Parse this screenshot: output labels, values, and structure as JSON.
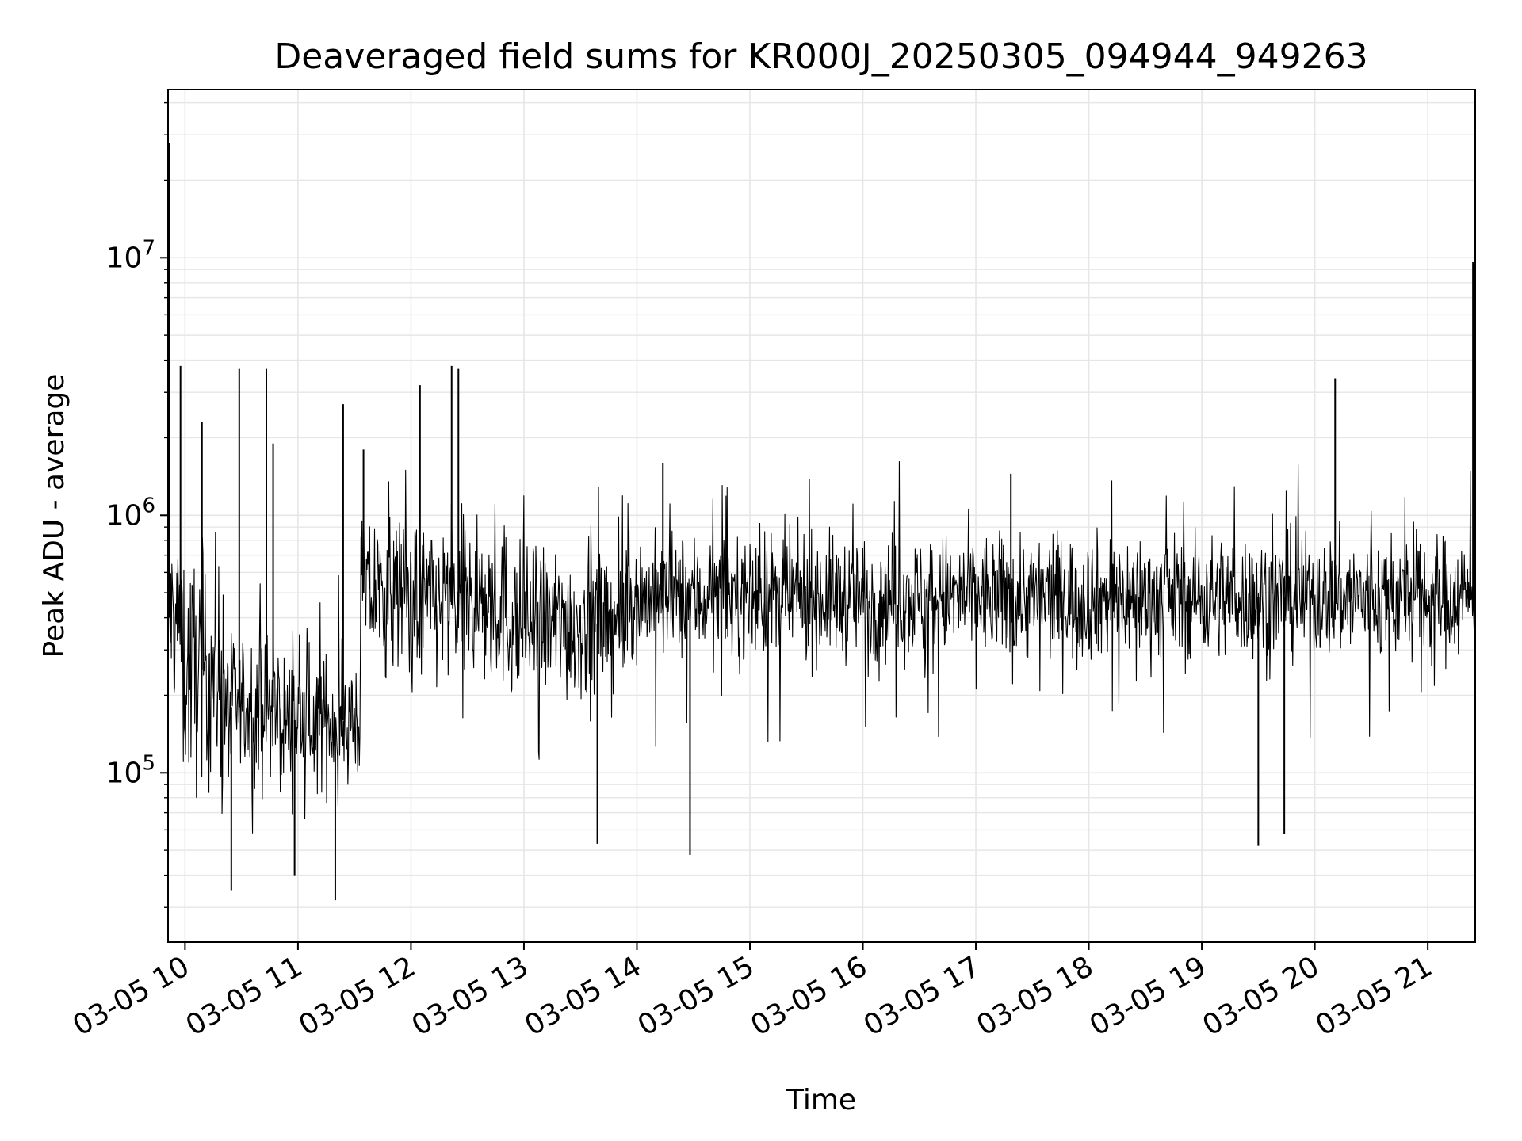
{
  "chart_data": {
    "type": "line",
    "title": "Deaveraged field sums for KR000J_20250305_094944_949263",
    "xlabel": "Time",
    "ylabel": "Peak ADU - average",
    "x_ticks": [
      "03-05 10",
      "03-05 11",
      "03-05 12",
      "03-05 13",
      "03-05 14",
      "03-05 15",
      "03-05 16",
      "03-05 17",
      "03-05 18",
      "03-05 19",
      "03-05 20",
      "03-05 21"
    ],
    "y_ticks": [
      {
        "base": "10",
        "exp": "5",
        "value": 100000
      },
      {
        "base": "10",
        "exp": "6",
        "value": 1000000
      },
      {
        "base": "10",
        "exp": "7",
        "value": 10000000
      }
    ],
    "x_range_hours": [
      9.85,
      21.42
    ],
    "ylim": [
      22000,
      45000000
    ],
    "yscale": "log",
    "grid": true,
    "line_color": "#000000",
    "grid_color": "#e6e6e6",
    "segments": [
      {
        "t0": 9.85,
        "t1": 9.98,
        "center": 400000,
        "spread": 0.35
      },
      {
        "t0": 9.98,
        "t1": 10.35,
        "center": 250000,
        "spread": 0.45
      },
      {
        "t0": 10.35,
        "t1": 10.8,
        "center": 180000,
        "spread": 0.28
      },
      {
        "t0": 10.8,
        "t1": 11.55,
        "center": 160000,
        "spread": 0.25
      },
      {
        "t0": 11.55,
        "t1": 12.0,
        "center": 500000,
        "spread": 0.3
      },
      {
        "t0": 12.0,
        "t1": 12.85,
        "center": 450000,
        "spread": 0.32
      },
      {
        "t0": 12.85,
        "t1": 13.9,
        "center": 380000,
        "spread": 0.3
      },
      {
        "t0": 13.9,
        "t1": 21.42,
        "center": 480000,
        "spread": 0.24
      }
    ],
    "spikes": [
      {
        "t": 9.86,
        "value": 28000000
      },
      {
        "t": 9.96,
        "value": 3800000
      },
      {
        "t": 10.15,
        "value": 2300000
      },
      {
        "t": 10.48,
        "value": 3700000
      },
      {
        "t": 10.72,
        "value": 3700000
      },
      {
        "t": 10.78,
        "value": 1900000
      },
      {
        "t": 11.4,
        "value": 2700000
      },
      {
        "t": 11.58,
        "value": 1800000
      },
      {
        "t": 12.08,
        "value": 3200000
      },
      {
        "t": 12.36,
        "value": 3800000
      },
      {
        "t": 12.42,
        "value": 3700000
      },
      {
        "t": 14.23,
        "value": 1600000
      },
      {
        "t": 17.31,
        "value": 1450000
      },
      {
        "t": 20.18,
        "value": 3400000
      },
      {
        "t": 21.4,
        "value": 9600000
      }
    ],
    "dips": [
      {
        "t": 10.41,
        "value": 35000
      },
      {
        "t": 11.33,
        "value": 32000
      },
      {
        "t": 10.97,
        "value": 40000
      },
      {
        "t": 13.65,
        "value": 53000
      },
      {
        "t": 14.47,
        "value": 48000
      },
      {
        "t": 19.5,
        "value": 52000
      },
      {
        "t": 19.73,
        "value": 58000
      }
    ]
  }
}
